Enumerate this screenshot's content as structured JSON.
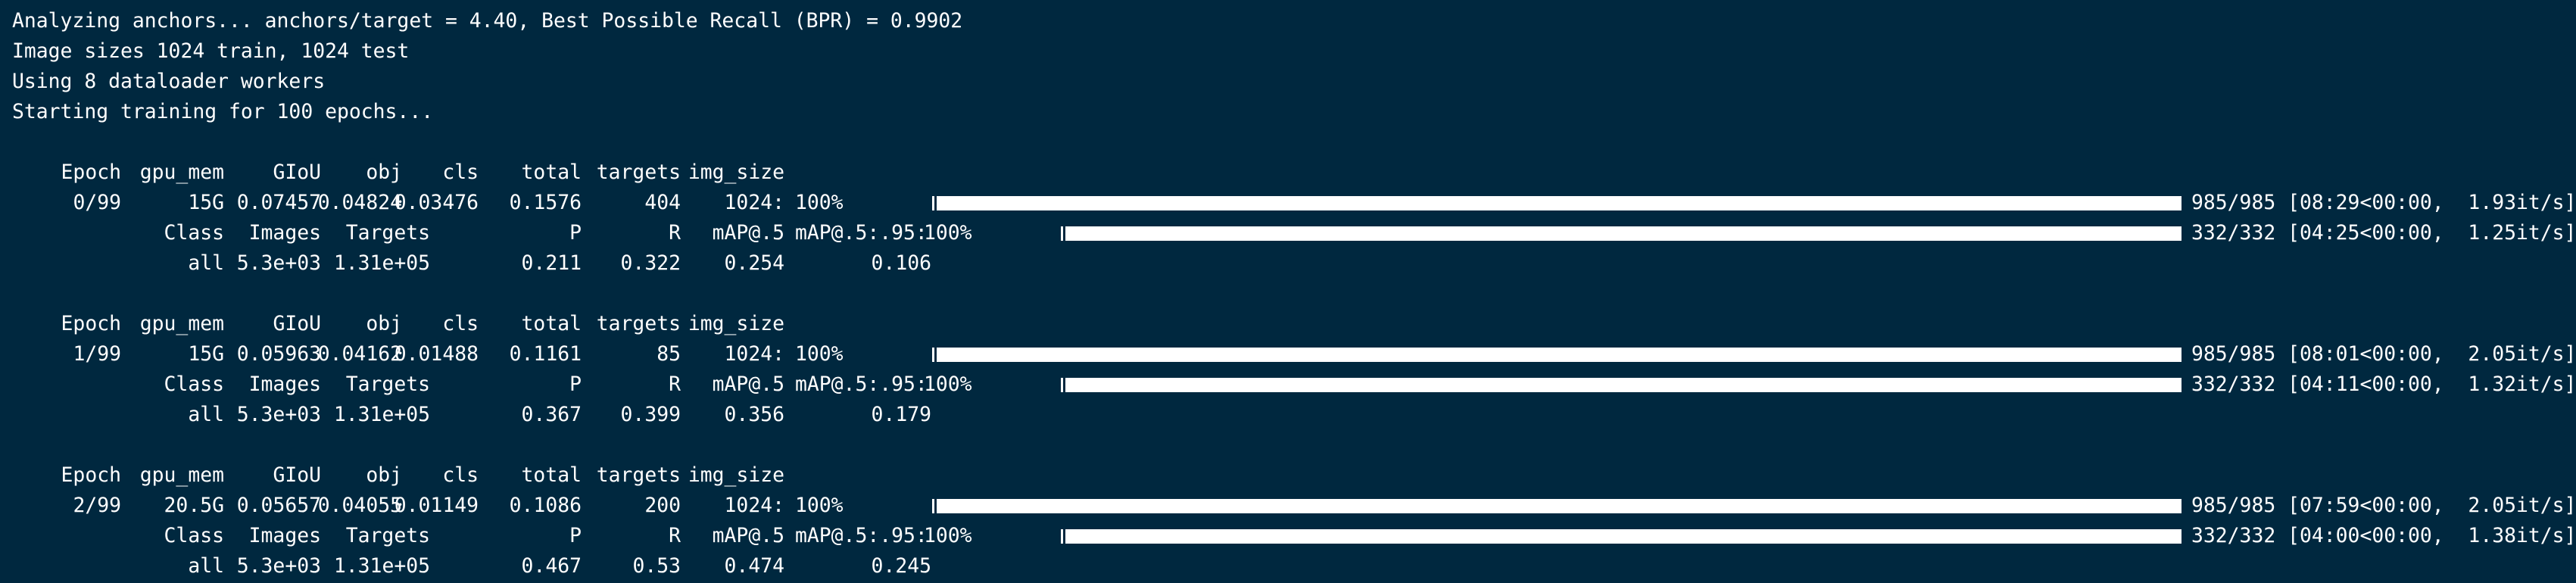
{
  "intro": [
    "Analyzing anchors... anchors/target = 4.40, Best Possible Recall (BPR) = 0.9902",
    "Image sizes 1024 train, 1024 test",
    "Using 8 dataloader workers",
    "Starting training for 100 epochs..."
  ],
  "train_headers": [
    "Epoch",
    "gpu_mem",
    "GIoU",
    "obj",
    "cls",
    "total",
    "targets",
    "img_size"
  ],
  "eval_headers": [
    "Class",
    "Images",
    "Targets",
    "P",
    "R",
    "mAP@.5"
  ],
  "epochs": [
    {
      "train": [
        "0/99",
        "15G",
        "0.07457",
        "0.04824",
        "0.03476",
        "0.1576",
        "404",
        "1024:"
      ],
      "train_progress": {
        "label": "100%",
        "fraction": 1.0,
        "status": "985/985 [08:29<00:00,  1.93it/s]"
      },
      "eval_label": "mAP@.5:.95:",
      "eval_progress": {
        "label": "100%",
        "fraction": 1.0,
        "status": "332/332 [04:25<00:00,  1.25it/s]"
      },
      "results": [
        "all",
        "5.3e+03",
        "1.31e+05",
        "0.211",
        "0.322",
        "0.254",
        "0.106"
      ]
    },
    {
      "train": [
        "1/99",
        "15G",
        "0.05963",
        "0.04162",
        "0.01488",
        "0.1161",
        "85",
        "1024:"
      ],
      "train_progress": {
        "label": "100%",
        "fraction": 1.0,
        "status": "985/985 [08:01<00:00,  2.05it/s]"
      },
      "eval_label": "mAP@.5:.95:",
      "eval_progress": {
        "label": "100%",
        "fraction": 1.0,
        "status": "332/332 [04:11<00:00,  1.32it/s]"
      },
      "results": [
        "all",
        "5.3e+03",
        "1.31e+05",
        "0.367",
        "0.399",
        "0.356",
        "0.179"
      ]
    },
    {
      "train": [
        "2/99",
        "20.5G",
        "0.05657",
        "0.04055",
        "0.01149",
        "0.1086",
        "200",
        "1024:"
      ],
      "train_progress": {
        "label": "100%",
        "fraction": 1.0,
        "status": "985/985 [07:59<00:00,  2.05it/s]"
      },
      "eval_label": "mAP@.5:.95:",
      "eval_progress": {
        "label": "100%",
        "fraction": 1.0,
        "status": "332/332 [04:00<00:00,  1.38it/s]"
      },
      "results": [
        "all",
        "5.3e+03",
        "1.31e+05",
        "0.467",
        "0.53",
        "0.474",
        "0.245"
      ]
    }
  ],
  "colors": {
    "background": "#00283f",
    "text": "#ffffff"
  }
}
